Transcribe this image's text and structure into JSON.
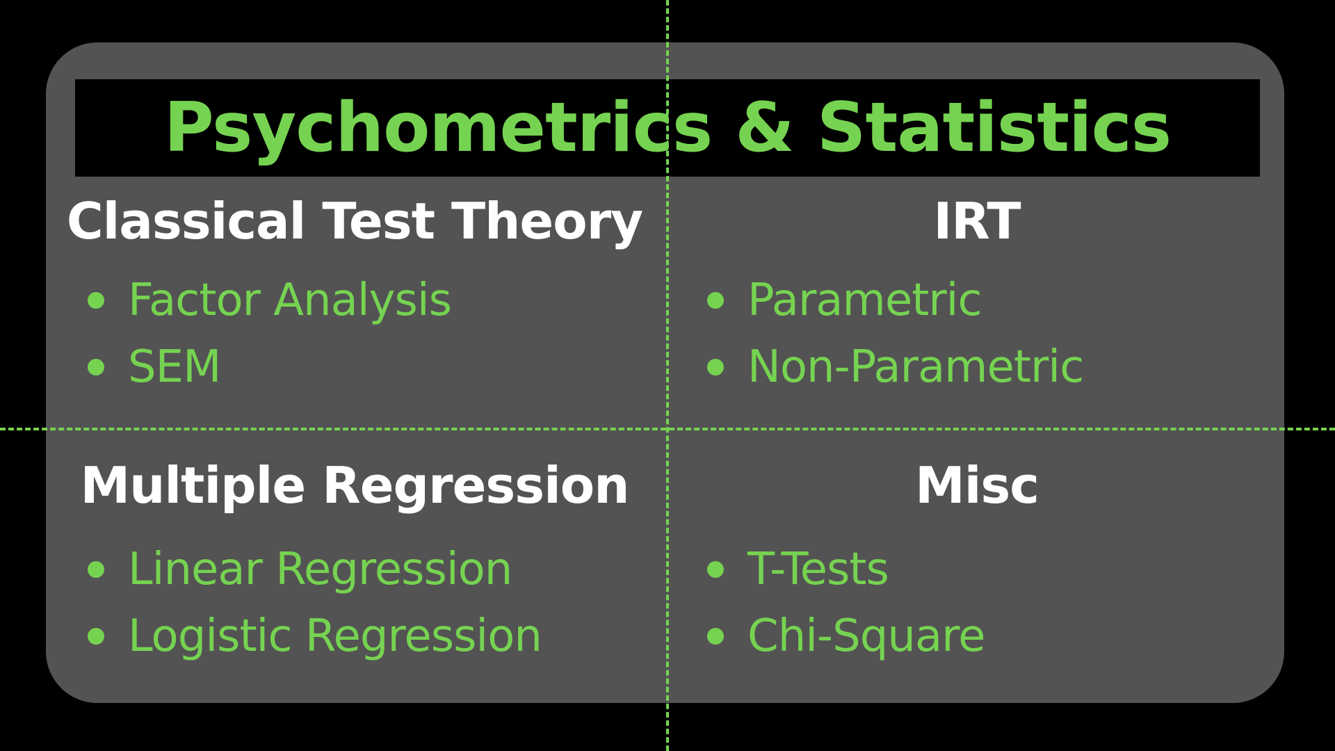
{
  "title": "Psychometrics & Statistics",
  "colors": {
    "background": "#000000",
    "panel": "#535353",
    "accent_green": "#76d351",
    "heading_white": "#ffffff"
  },
  "quadrants": [
    {
      "heading": "Classical Test Theory",
      "items": [
        "Factor Analysis",
        "SEM"
      ]
    },
    {
      "heading": "IRT",
      "items": [
        "Parametric",
        "Non-Parametric"
      ]
    },
    {
      "heading": "Multiple Regression",
      "items": [
        "Linear Regression",
        "Logistic Regression"
      ]
    },
    {
      "heading": "Misc",
      "items": [
        "T-Tests",
        "Chi-Square"
      ]
    }
  ]
}
